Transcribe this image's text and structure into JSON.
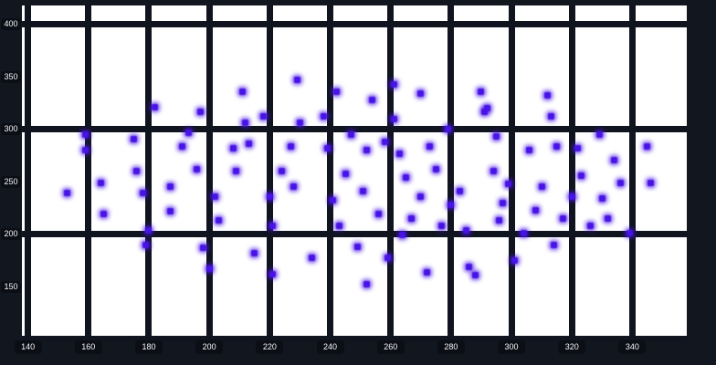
{
  "style": {
    "page_background": "#12161f",
    "plot_background": "#ffffff",
    "grid_color": "#10141f",
    "point_color": "#4713e6",
    "tick_chip_color": "#0b0e15",
    "tick_text_color": "#f5f6f8"
  },
  "chart_data": {
    "type": "scatter",
    "title": "",
    "xlabel": "",
    "ylabel": "",
    "legend": false,
    "grid": true,
    "xlim": [
      138,
      358
    ],
    "ylim": [
      98,
      418
    ],
    "x_ticks": [
      140,
      160,
      180,
      200,
      220,
      240,
      260,
      280,
      300,
      320,
      340
    ],
    "y_ticks": [
      150,
      200,
      250,
      300,
      350,
      400
    ],
    "x_gridlines": [
      140,
      160,
      180,
      200,
      220,
      240,
      260,
      280,
      300,
      320,
      340,
      360
    ],
    "y_gridlines": [
      100,
      200,
      300,
      400
    ],
    "points": [
      [
        153,
        239
      ],
      [
        159,
        295
      ],
      [
        159,
        280
      ],
      [
        164,
        249
      ],
      [
        165,
        219
      ],
      [
        175,
        291
      ],
      [
        176,
        260
      ],
      [
        178,
        239
      ],
      [
        179,
        190
      ],
      [
        180,
        204
      ],
      [
        182,
        321
      ],
      [
        187,
        245
      ],
      [
        187,
        222
      ],
      [
        191,
        284
      ],
      [
        193,
        297
      ],
      [
        196,
        262
      ],
      [
        197,
        317
      ],
      [
        198,
        187
      ],
      [
        200,
        167
      ],
      [
        202,
        236
      ],
      [
        203,
        213
      ],
      [
        208,
        282
      ],
      [
        209,
        260
      ],
      [
        211,
        336
      ],
      [
        212,
        306
      ],
      [
        213,
        286
      ],
      [
        215,
        182
      ],
      [
        218,
        312
      ],
      [
        220,
        236
      ],
      [
        221,
        208
      ],
      [
        221,
        162
      ],
      [
        224,
        260
      ],
      [
        227,
        284
      ],
      [
        228,
        245
      ],
      [
        229,
        347
      ],
      [
        230,
        306
      ],
      [
        234,
        178
      ],
      [
        238,
        312
      ],
      [
        239,
        282
      ],
      [
        241,
        232
      ],
      [
        242,
        336
      ],
      [
        243,
        208
      ],
      [
        245,
        258
      ],
      [
        247,
        295
      ],
      [
        249,
        188
      ],
      [
        251,
        241
      ],
      [
        252,
        280
      ],
      [
        252,
        152
      ],
      [
        254,
        328
      ],
      [
        256,
        219
      ],
      [
        258,
        288
      ],
      [
        259,
        178
      ],
      [
        261,
        343
      ],
      [
        261,
        310
      ],
      [
        263,
        277
      ],
      [
        264,
        199
      ],
      [
        265,
        254
      ],
      [
        267,
        215
      ],
      [
        270,
        236
      ],
      [
        270,
        334
      ],
      [
        272,
        164
      ],
      [
        273,
        284
      ],
      [
        275,
        262
      ],
      [
        277,
        208
      ],
      [
        279,
        300
      ],
      [
        280,
        228
      ],
      [
        283,
        241
      ],
      [
        285,
        204
      ],
      [
        286,
        169
      ],
      [
        288,
        161
      ],
      [
        290,
        336
      ],
      [
        291,
        317
      ],
      [
        292,
        320
      ],
      [
        294,
        260
      ],
      [
        295,
        293
      ],
      [
        296,
        213
      ],
      [
        297,
        230
      ],
      [
        299,
        248
      ],
      [
        301,
        175
      ],
      [
        304,
        201
      ],
      [
        306,
        280
      ],
      [
        308,
        223
      ],
      [
        310,
        245
      ],
      [
        312,
        332
      ],
      [
        313,
        312
      ],
      [
        314,
        190
      ],
      [
        315,
        284
      ],
      [
        317,
        215
      ],
      [
        320,
        236
      ],
      [
        322,
        282
      ],
      [
        323,
        256
      ],
      [
        326,
        208
      ],
      [
        329,
        295
      ],
      [
        330,
        234
      ],
      [
        332,
        215
      ],
      [
        334,
        271
      ],
      [
        336,
        249
      ],
      [
        339,
        201
      ],
      [
        345,
        284
      ],
      [
        346,
        249
      ]
    ]
  }
}
